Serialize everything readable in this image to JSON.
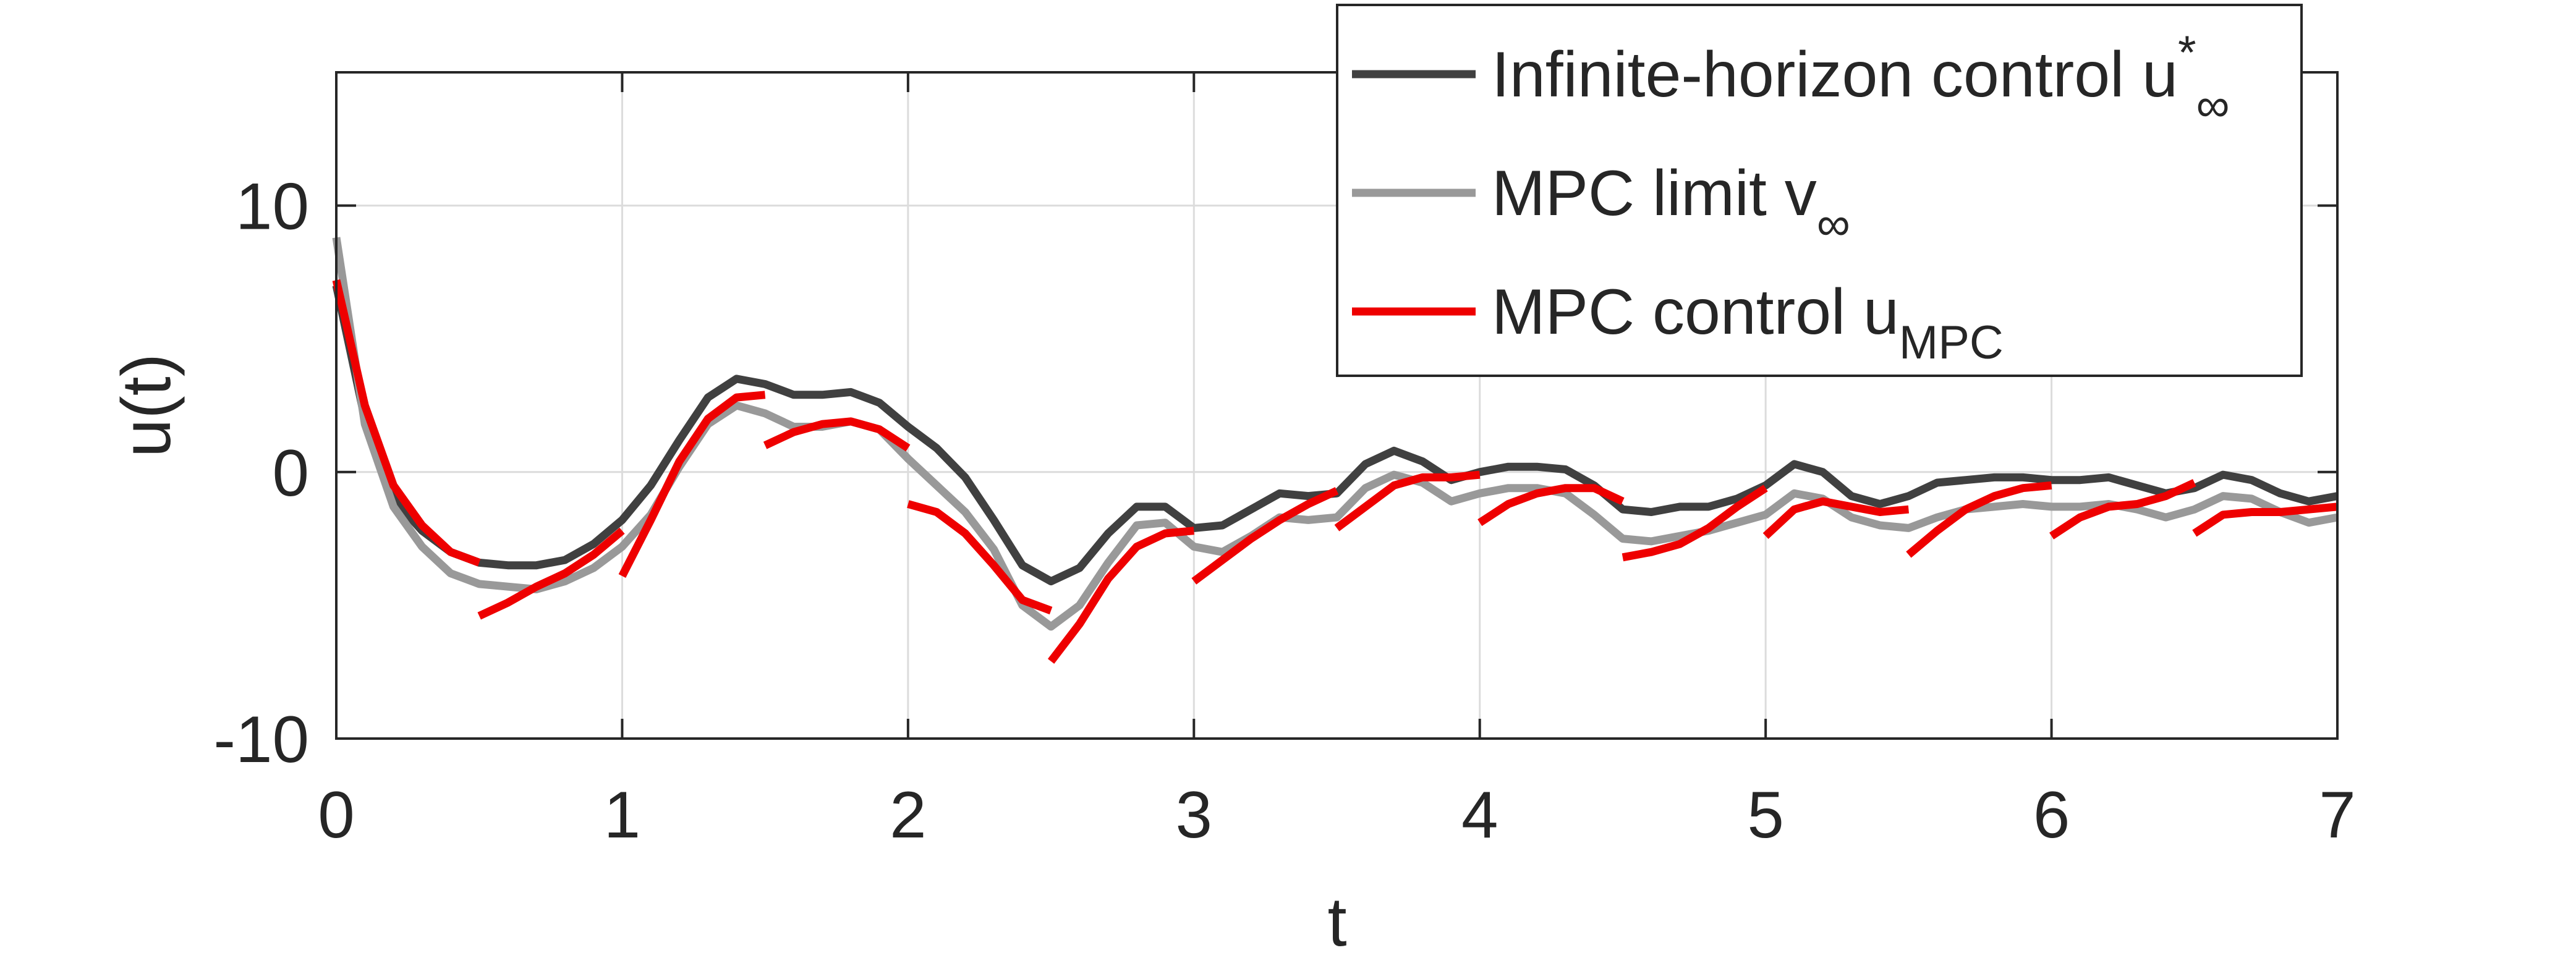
{
  "chart_data": {
    "type": "line",
    "xlabel": "t",
    "ylabel": "u(t)",
    "xlim": [
      0,
      7
    ],
    "ylim": [
      -10,
      15
    ],
    "xticks": [
      0,
      1,
      2,
      3,
      4,
      5,
      6,
      7
    ],
    "yticks": [
      -10,
      0,
      10
    ],
    "grid": true,
    "legend": "top-right",
    "series": [
      {
        "name": "Infinite-horizon control u^*_∞",
        "color": "#404040",
        "x": [
          0,
          0.1,
          0.2,
          0.3,
          0.4,
          0.5,
          0.6,
          0.7,
          0.8,
          0.9,
          1,
          1.1,
          1.2,
          1.3,
          1.4,
          1.5,
          1.6,
          1.7,
          1.8,
          1.9,
          2,
          2.1,
          2.2,
          2.3,
          2.4,
          2.5,
          2.6,
          2.7,
          2.8,
          2.9,
          3,
          3.1,
          3.2,
          3.3,
          3.4,
          3.5,
          3.6,
          3.7,
          3.8,
          3.9,
          4,
          4.1,
          4.2,
          4.3,
          4.4,
          4.5,
          4.6,
          4.7,
          4.8,
          4.9,
          5,
          5.1,
          5.2,
          5.3,
          5.4,
          5.5,
          5.6,
          5.7,
          5.8,
          5.9,
          6,
          6.1,
          6.2,
          6.3,
          6.4,
          6.5,
          6.6,
          6.7,
          6.8,
          6.9,
          7
        ],
        "values": [
          7,
          2,
          -1,
          -2.2,
          -3,
          -3.4,
          -3.5,
          -3.5,
          -3.3,
          -2.7,
          -1.8,
          -0.5,
          1.2,
          2.8,
          3.5,
          3.3,
          2.9,
          2.9,
          3,
          2.6,
          1.7,
          0.9,
          -0.2,
          -1.8,
          -3.5,
          -4.1,
          -3.6,
          -2.3,
          -1.3,
          -1.3,
          -2.1,
          -2,
          -1.4,
          -0.8,
          -0.9,
          -0.8,
          0.3,
          0.8,
          0.4,
          -0.3,
          0,
          0.2,
          0.2,
          0.1,
          -0.5,
          -1.4,
          -1.5,
          -1.3,
          -1.3,
          -1,
          -0.5,
          0.3,
          0,
          -0.9,
          -1.2,
          -0.9,
          -0.4,
          -0.3,
          -0.2,
          -0.2,
          -0.3,
          -0.3,
          -0.2,
          -0.5,
          -0.8,
          -0.6,
          -0.1,
          -0.3,
          -0.8,
          -1.1,
          -0.9
        ]
      },
      {
        "name": "MPC limit v_∞",
        "color": "#999999",
        "x": [
          0,
          0.1,
          0.2,
          0.3,
          0.4,
          0.5,
          0.6,
          0.7,
          0.8,
          0.9,
          1,
          1.1,
          1.2,
          1.3,
          1.4,
          1.5,
          1.6,
          1.7,
          1.8,
          1.9,
          2,
          2.1,
          2.2,
          2.3,
          2.4,
          2.5,
          2.6,
          2.7,
          2.8,
          2.9,
          3,
          3.1,
          3.2,
          3.3,
          3.4,
          3.5,
          3.6,
          3.7,
          3.8,
          3.9,
          4,
          4.1,
          4.2,
          4.3,
          4.4,
          4.5,
          4.6,
          4.7,
          4.8,
          4.9,
          5,
          5.1,
          5.2,
          5.3,
          5.4,
          5.5,
          5.6,
          5.7,
          5.8,
          5.9,
          6,
          6.1,
          6.2,
          6.3,
          6.4,
          6.5,
          6.6,
          6.7,
          6.8,
          6.9,
          7
        ],
        "values": [
          8.8,
          1.8,
          -1.3,
          -2.8,
          -3.8,
          -4.2,
          -4.3,
          -4.4,
          -4.1,
          -3.6,
          -2.8,
          -1.6,
          0.2,
          1.8,
          2.5,
          2.2,
          1.7,
          1.7,
          1.9,
          1.6,
          0.5,
          -0.5,
          -1.5,
          -2.9,
          -5,
          -5.8,
          -5,
          -3.4,
          -2,
          -1.9,
          -2.8,
          -3,
          -2.4,
          -1.7,
          -1.8,
          -1.7,
          -0.6,
          -0.1,
          -0.4,
          -1.1,
          -0.8,
          -0.6,
          -0.6,
          -0.8,
          -1.6,
          -2.5,
          -2.6,
          -2.4,
          -2.2,
          -1.9,
          -1.6,
          -0.8,
          -1,
          -1.7,
          -2,
          -2.1,
          -1.7,
          -1.4,
          -1.3,
          -1.2,
          -1.3,
          -1.3,
          -1.2,
          -1.4,
          -1.7,
          -1.4,
          -0.9,
          -1,
          -1.5,
          -1.9,
          -1.7
        ]
      },
      {
        "name": "MPC control u_{MPC}",
        "color": "#ee0000",
        "x": [
          0,
          0.1,
          0.2,
          0.3,
          0.4,
          0.5,
          0.5,
          0.5,
          0.6,
          0.7,
          0.8,
          0.9,
          1,
          1,
          1,
          1.1,
          1.2,
          1.3,
          1.4,
          1.5,
          1.5,
          1.5,
          1.6,
          1.7,
          1.8,
          1.9,
          2,
          2,
          2,
          2.1,
          2.2,
          2.3,
          2.4,
          2.5,
          2.5,
          2.5,
          2.6,
          2.7,
          2.8,
          2.9,
          3,
          3,
          3,
          3.1,
          3.2,
          3.3,
          3.4,
          3.5,
          3.5,
          3.5,
          3.6,
          3.7,
          3.8,
          3.9,
          4,
          4,
          4,
          4.1,
          4.2,
          4.3,
          4.4,
          4.5,
          4.5,
          4.5,
          4.6,
          4.7,
          4.8,
          4.9,
          5,
          5,
          5,
          5.1,
          5.2,
          5.3,
          5.4,
          5.5,
          5.5,
          5.5,
          5.6,
          5.7,
          5.8,
          5.9,
          6,
          6,
          6,
          6.1,
          6.2,
          6.3,
          6.4,
          6.5,
          6.5,
          6.5,
          6.6,
          6.7,
          6.8,
          6.9,
          7
        ],
        "values": [
          7.2,
          2.5,
          -0.5,
          -2,
          -3,
          -3.4,
          null,
          -5.4,
          -4.9,
          -4.3,
          -3.8,
          -3.1,
          -2.2,
          null,
          -3.9,
          -1.8,
          0.4,
          2,
          2.8,
          2.9,
          null,
          1,
          1.5,
          1.8,
          1.9,
          1.6,
          0.9,
          null,
          -1.2,
          -1.5,
          -2.3,
          -3.5,
          -4.8,
          -5.2,
          null,
          -7.1,
          -5.7,
          -4,
          -2.8,
          -2.3,
          -2.2,
          null,
          -4.1,
          -3.3,
          -2.5,
          -1.8,
          -1.2,
          -0.7,
          null,
          -2.1,
          -1.3,
          -0.5,
          -0.2,
          -0.2,
          -0.1,
          null,
          -1.9,
          -1.2,
          -0.8,
          -0.6,
          -0.6,
          -1.1,
          null,
          -3.2,
          -3,
          -2.7,
          -2.1,
          -1.3,
          -0.6,
          null,
          -2.4,
          -1.4,
          -1.1,
          -1.3,
          -1.5,
          -1.4,
          null,
          -3.1,
          -2.2,
          -1.4,
          -0.9,
          -0.6,
          -0.5,
          null,
          -2.4,
          -1.7,
          -1.3,
          -1.2,
          -0.9,
          -0.4,
          null,
          -2.3,
          -1.6,
          -1.5,
          -1.5,
          -1.4,
          -1.3
        ]
      }
    ]
  }
}
